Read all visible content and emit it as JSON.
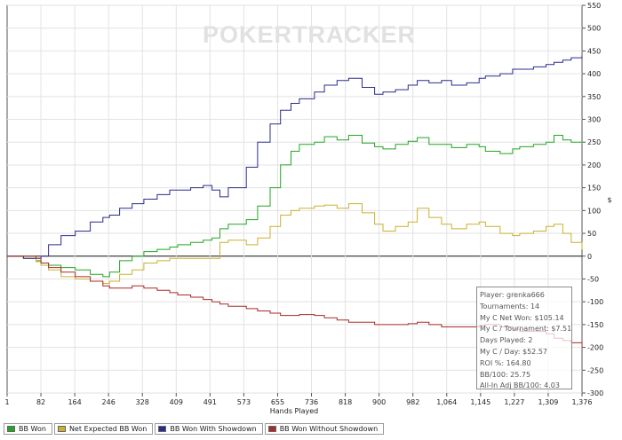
{
  "watermark": "POKERTRACKER",
  "chart_data": {
    "type": "line",
    "xlabel": "Hands Played",
    "ylabel": "$",
    "x_ticks": [
      "1",
      "82",
      "164",
      "246",
      "328",
      "409",
      "491",
      "573",
      "655",
      "736",
      "818",
      "900",
      "982",
      "1,064",
      "1,145",
      "1,227",
      "1,309",
      "1,376"
    ],
    "xlim": [
      1,
      1376
    ],
    "ylim": [
      -300,
      550
    ],
    "y_ticks": [
      -300,
      -250,
      -200,
      -150,
      -100,
      -50,
      0,
      50,
      100,
      150,
      200,
      250,
      300,
      350,
      400,
      450,
      500,
      550
    ],
    "grid": true,
    "legend_position": "bottom",
    "series": [
      {
        "name": "BB Won",
        "color": "#22a622",
        "x": [
          1,
          40,
          70,
          82,
          100,
          130,
          164,
          200,
          230,
          246,
          270,
          300,
          328,
          360,
          390,
          409,
          440,
          470,
          491,
          510,
          530,
          573,
          600,
          630,
          655,
          680,
          700,
          736,
          760,
          790,
          818,
          850,
          880,
          900,
          930,
          960,
          982,
          1010,
          1040,
          1064,
          1100,
          1130,
          1145,
          1180,
          1210,
          1227,
          1260,
          1290,
          1309,
          1330,
          1350,
          1376
        ],
        "y": [
          0,
          -5,
          -10,
          -15,
          -20,
          -25,
          -30,
          -40,
          -45,
          -35,
          -10,
          0,
          10,
          15,
          20,
          25,
          30,
          35,
          40,
          60,
          70,
          80,
          110,
          150,
          200,
          230,
          245,
          250,
          262,
          255,
          265,
          248,
          240,
          235,
          245,
          252,
          260,
          245,
          245,
          238,
          245,
          240,
          230,
          225,
          235,
          240,
          245,
          250,
          265,
          255,
          250,
          245
        ]
      },
      {
        "name": "Net Expected BB Won",
        "color": "#c8b22e",
        "x": [
          1,
          40,
          70,
          82,
          100,
          130,
          164,
          200,
          230,
          246,
          270,
          300,
          328,
          360,
          390,
          409,
          440,
          470,
          491,
          510,
          530,
          573,
          600,
          630,
          655,
          680,
          700,
          736,
          760,
          790,
          818,
          850,
          880,
          900,
          930,
          960,
          982,
          1010,
          1040,
          1064,
          1100,
          1130,
          1145,
          1180,
          1210,
          1227,
          1260,
          1290,
          1309,
          1330,
          1350,
          1376
        ],
        "y": [
          0,
          -5,
          -12,
          -20,
          -30,
          -45,
          -50,
          -55,
          -60,
          -55,
          -40,
          -30,
          -15,
          -10,
          -5,
          -5,
          -5,
          -5,
          -5,
          30,
          35,
          25,
          40,
          65,
          90,
          100,
          105,
          110,
          112,
          105,
          115,
          95,
          70,
          55,
          65,
          75,
          105,
          85,
          70,
          60,
          70,
          75,
          65,
          50,
          45,
          50,
          55,
          65,
          70,
          50,
          30,
          15
        ]
      },
      {
        "name": "BB Won With Showdown",
        "color": "#2c2c8e",
        "x": [
          1,
          40,
          70,
          82,
          100,
          130,
          164,
          200,
          230,
          246,
          270,
          300,
          328,
          360,
          390,
          409,
          440,
          470,
          491,
          510,
          530,
          573,
          600,
          630,
          655,
          680,
          700,
          736,
          760,
          790,
          818,
          850,
          880,
          900,
          930,
          960,
          982,
          1010,
          1040,
          1064,
          1100,
          1130,
          1145,
          1180,
          1210,
          1227,
          1260,
          1290,
          1309,
          1330,
          1350,
          1376
        ],
        "y": [
          0,
          -5,
          -5,
          0,
          25,
          45,
          55,
          75,
          85,
          90,
          105,
          115,
          125,
          135,
          145,
          145,
          150,
          155,
          145,
          130,
          150,
          195,
          250,
          290,
          320,
          335,
          345,
          360,
          375,
          385,
          390,
          370,
          355,
          360,
          365,
          375,
          385,
          380,
          385,
          375,
          380,
          390,
          395,
          400,
          410,
          410,
          415,
          420,
          425,
          430,
          435,
          440
        ]
      },
      {
        "name": "BB Won Without Showdown",
        "color": "#a82a2a",
        "x": [
          1,
          40,
          70,
          82,
          100,
          130,
          164,
          200,
          230,
          246,
          270,
          300,
          328,
          360,
          390,
          409,
          440,
          470,
          491,
          510,
          530,
          573,
          600,
          630,
          655,
          680,
          700,
          736,
          760,
          790,
          818,
          850,
          880,
          900,
          930,
          960,
          982,
          1010,
          1040,
          1064,
          1100,
          1130,
          1145,
          1180,
          1210,
          1227,
          1260,
          1290,
          1309,
          1330,
          1350,
          1376
        ],
        "y": [
          0,
          0,
          -5,
          -15,
          -25,
          -35,
          -45,
          -55,
          -65,
          -70,
          -70,
          -65,
          -70,
          -75,
          -80,
          -85,
          -90,
          -95,
          -100,
          -105,
          -110,
          -115,
          -120,
          -125,
          -130,
          -130,
          -128,
          -130,
          -135,
          -140,
          -145,
          -145,
          -150,
          -150,
          -150,
          -148,
          -145,
          -150,
          -155,
          -155,
          -155,
          -152,
          -150,
          -155,
          -160,
          -165,
          -165,
          -170,
          -180,
          -185,
          -190,
          -200
        ]
      }
    ]
  },
  "stats": {
    "player": "Player: grenka666",
    "tournaments": "Tournaments: 14",
    "net_won": "My C Net Won: $105.14",
    "per_tournament": "My C / Tournament: $7.51",
    "days_played": "Days Played: 2",
    "per_day": "My C / Day: $52.57",
    "roi": "ROI %: 164.80",
    "bb100": "BB/100: 25.75",
    "allin_bb100": "All-In Adj BB/100: 4.03"
  },
  "legend": [
    {
      "label": "BB Won",
      "color": "#22a622"
    },
    {
      "label": "Net Expected BB Won",
      "color": "#c8b22e"
    },
    {
      "label": "BB Won With Showdown",
      "color": "#2c2c8e"
    },
    {
      "label": "BB Won Without Showdown",
      "color": "#a82a2a"
    }
  ]
}
